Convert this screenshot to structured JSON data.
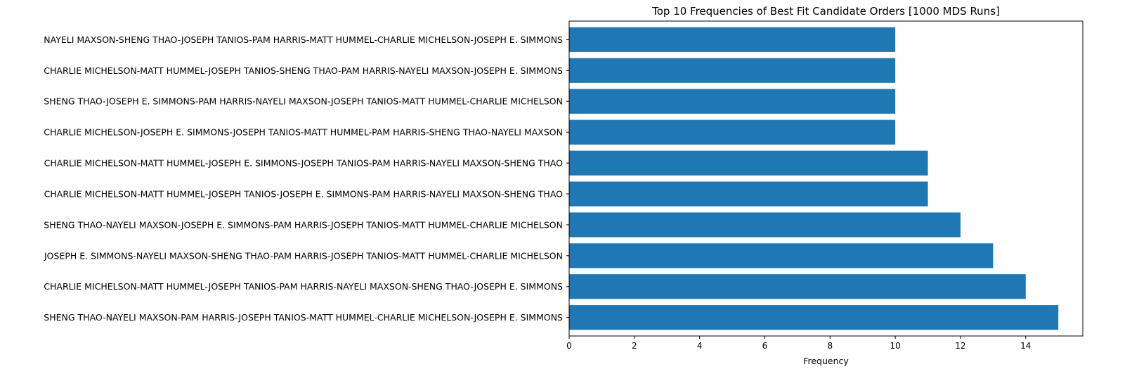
{
  "chart_data": {
    "type": "bar",
    "orientation": "horizontal",
    "title": "Top 10 Frequencies of Best Fit Candidate Orders [1000 MDS Runs]",
    "xlabel": "Frequency",
    "ylabel": "",
    "xlim": [
      0,
      15.75
    ],
    "xticks": [
      0,
      2,
      4,
      6,
      8,
      10,
      12,
      14
    ],
    "grid": false,
    "bar_color": "#1f77b4",
    "categories": [
      "SHENG THAO-NAYELI MAXSON-PAM HARRIS-JOSEPH TANIOS-MATT HUMMEL-CHARLIE MICHELSON-JOSEPH E. SIMMONS",
      "CHARLIE MICHELSON-MATT HUMMEL-JOSEPH TANIOS-PAM HARRIS-NAYELI MAXSON-SHENG THAO-JOSEPH E. SIMMONS",
      "JOSEPH E. SIMMONS-NAYELI MAXSON-SHENG THAO-PAM HARRIS-JOSEPH TANIOS-MATT HUMMEL-CHARLIE MICHELSON",
      "SHENG THAO-NAYELI MAXSON-JOSEPH E. SIMMONS-PAM HARRIS-JOSEPH TANIOS-MATT HUMMEL-CHARLIE MICHELSON",
      "CHARLIE MICHELSON-MATT HUMMEL-JOSEPH TANIOS-JOSEPH E. SIMMONS-PAM HARRIS-NAYELI MAXSON-SHENG THAO",
      "CHARLIE MICHELSON-MATT HUMMEL-JOSEPH E. SIMMONS-JOSEPH TANIOS-PAM HARRIS-NAYELI MAXSON-SHENG THAO",
      "CHARLIE MICHELSON-JOSEPH E. SIMMONS-JOSEPH TANIOS-MATT HUMMEL-PAM HARRIS-SHENG THAO-NAYELI MAXSON",
      "SHENG THAO-JOSEPH E. SIMMONS-PAM HARRIS-NAYELI MAXSON-JOSEPH TANIOS-MATT HUMMEL-CHARLIE MICHELSON",
      "CHARLIE MICHELSON-MATT HUMMEL-JOSEPH TANIOS-SHENG THAO-PAM HARRIS-NAYELI MAXSON-JOSEPH E. SIMMONS",
      "NAYELI MAXSON-SHENG THAO-JOSEPH TANIOS-PAM HARRIS-MATT HUMMEL-CHARLIE MICHELSON-JOSEPH E. SIMMONS"
    ],
    "values": [
      15,
      14,
      13,
      12,
      11,
      11,
      10,
      10,
      10,
      10
    ]
  }
}
